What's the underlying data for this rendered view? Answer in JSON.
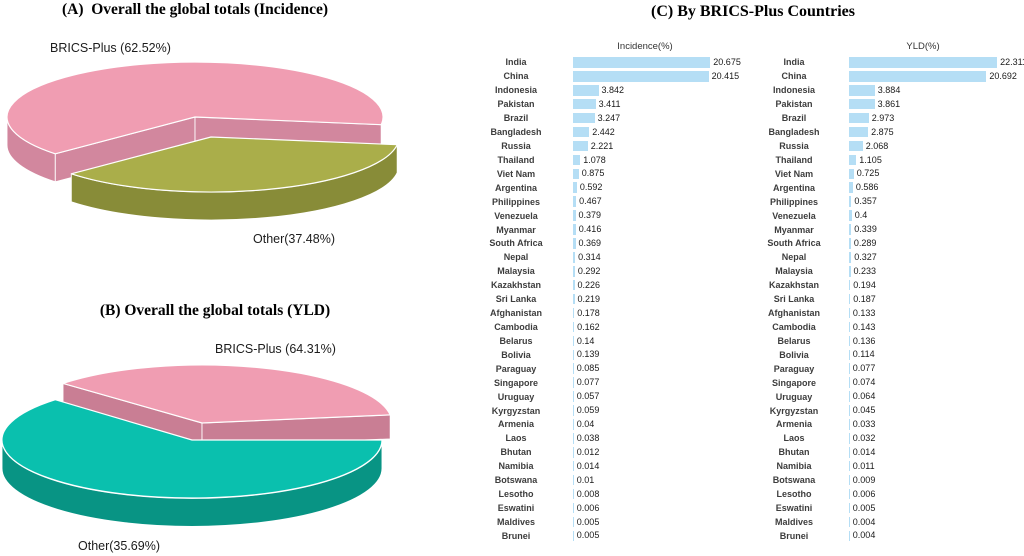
{
  "section_c": {
    "title": "(C) By BRICS-Plus Countries"
  },
  "chart_data": [
    {
      "type": "pie",
      "panel": "A",
      "title": "(A)  Overall the global totals (Incidence)",
      "labels": [
        "BRICS-Plus (62.52%)",
        "Other(37.48%)"
      ],
      "values": [
        62.52,
        37.48
      ],
      "colors": [
        "#F09DB2",
        "#AAAE4A"
      ],
      "side_colors": [
        "#D2879E",
        "#888C38"
      ],
      "legend_position": "around-slices"
    },
    {
      "type": "pie",
      "panel": "B",
      "title": "(B) Overall the global totals (YLD)",
      "labels": [
        "BRICS-Plus (64.31%)",
        "Other(35.69%)"
      ],
      "values": [
        64.31,
        35.69
      ],
      "colors": [
        "#F09DB2",
        "#0AC0AE"
      ],
      "side_colors": [
        "#C97E94",
        "#089484"
      ],
      "legend_position": "around-slices"
    },
    {
      "type": "bar",
      "panel": "C-left",
      "title": "Incidence(%)",
      "orientation": "horizontal",
      "bar_color": "#B5DEF5",
      "xlim": [
        0,
        22.5
      ],
      "grid": false,
      "categories": [
        "India",
        "China",
        "Indonesia",
        "Pakistan",
        "Brazil",
        "Bangladesh",
        "Russia",
        "Thailand",
        "Viet Nam",
        "Argentina",
        "Philippines",
        "Venezuela",
        "Myanmar",
        "South Africa",
        "Nepal",
        "Malaysia",
        "Kazakhstan",
        "Sri Lanka",
        "Afghanistan",
        "Cambodia",
        "Belarus",
        "Bolivia",
        "Paraguay",
        "Singapore",
        "Uruguay",
        "Kyrgyzstan",
        "Armenia",
        "Laos",
        "Bhutan",
        "Namibia",
        "Botswana",
        "Lesotho",
        "Eswatini",
        "Maldives",
        "Brunei"
      ],
      "values": [
        20.675,
        20.415,
        3.842,
        3.411,
        3.247,
        2.442,
        2.221,
        1.078,
        0.875,
        0.592,
        0.467,
        0.379,
        0.416,
        0.369,
        0.314,
        0.292,
        0.226,
        0.219,
        0.178,
        0.162,
        0.14,
        0.139,
        0.085,
        0.077,
        0.057,
        0.059,
        0.04,
        0.038,
        0.012,
        0.014,
        0.01,
        0.008,
        0.006,
        0.005,
        0.005
      ]
    },
    {
      "type": "bar",
      "panel": "C-right",
      "title": "YLD(%)",
      "orientation": "horizontal",
      "bar_color": "#B5DEF5",
      "xlim": [
        0,
        22.5
      ],
      "grid": false,
      "categories": [
        "India",
        "China",
        "Indonesia",
        "Pakistan",
        "Brazil",
        "Bangladesh",
        "Russia",
        "Thailand",
        "Viet Nam",
        "Argentina",
        "Philippines",
        "Venezuela",
        "Myanmar",
        "South Africa",
        "Nepal",
        "Malaysia",
        "Kazakhstan",
        "Sri Lanka",
        "Afghanistan",
        "Cambodia",
        "Belarus",
        "Bolivia",
        "Paraguay",
        "Singapore",
        "Uruguay",
        "Kyrgyzstan",
        "Armenia",
        "Laos",
        "Bhutan",
        "Namibia",
        "Botswana",
        "Lesotho",
        "Eswatini",
        "Maldives",
        "Brunei"
      ],
      "values": [
        22.311,
        20.692,
        3.884,
        3.861,
        2.973,
        2.875,
        2.068,
        1.105,
        0.725,
        0.586,
        0.357,
        0.4,
        0.339,
        0.289,
        0.327,
        0.233,
        0.194,
        0.187,
        0.133,
        0.143,
        0.136,
        0.114,
        0.077,
        0.074,
        0.064,
        0.045,
        0.033,
        0.032,
        0.014,
        0.011,
        0.009,
        0.006,
        0.005,
        0.004,
        0.004
      ]
    }
  ]
}
